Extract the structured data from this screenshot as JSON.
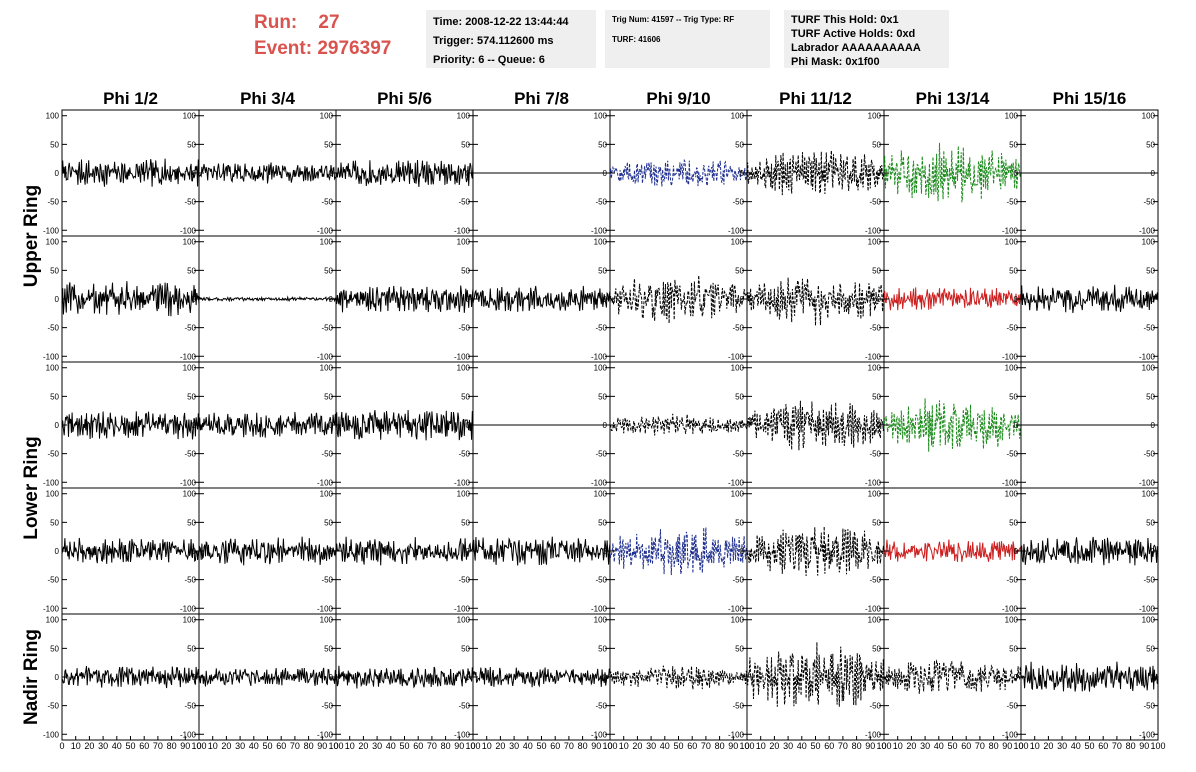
{
  "header": {
    "run_label": "Run:",
    "run_value": "27",
    "event_label": "Event:",
    "event_value": "2976397",
    "time": "Time: 2008-12-22 13:44:44",
    "trigger": "Trigger: 574.112600 ms",
    "priority": "Priority: 6 -- Queue: 6",
    "trig_num": "Trig Num: 41597 -- Trig Type: RF",
    "turf": "TURF: 41606",
    "turf_hold": "TURF This Hold: 0x1",
    "turf_active": "TURF Active Holds: 0xd",
    "labrador": "Labrador AAAAAAAAAA",
    "phi_mask": "Phi Mask: 0x1f00"
  },
  "chart_data": {
    "type": "line",
    "columns": [
      "Phi 1/2",
      "Phi 3/4",
      "Phi 5/6",
      "Phi 7/8",
      "Phi 9/10",
      "Phi 11/12",
      "Phi 13/14",
      "Phi 15/16"
    ],
    "ring_labels": [
      {
        "label": "Upper Ring",
        "rows": [
          0,
          1
        ]
      },
      {
        "label": "Lower Ring",
        "rows": [
          2,
          3
        ]
      },
      {
        "label": "Nadir Ring",
        "rows": [
          4
        ]
      }
    ],
    "xlim": [
      0,
      100
    ],
    "ylim": [
      -110,
      110
    ],
    "y_ticks": [
      "100",
      "50",
      "0",
      "-50",
      "-100"
    ],
    "x_tick_labels": [
      "0",
      "10",
      "20",
      "30",
      "40",
      "50",
      "60",
      "70",
      "80",
      "90",
      "100"
    ],
    "colors": {
      "black": "#000000",
      "blue": "#1f2f8f",
      "green": "#1a8a1a",
      "red": "#cc1f1f"
    },
    "traces": [
      [
        {
          "amp": 22,
          "color": "black",
          "dash": false
        },
        {
          "amp": 16,
          "color": "black",
          "dash": false
        },
        {
          "amp": 22,
          "color": "black",
          "dash": false
        },
        {
          "amp": 0,
          "color": "black",
          "dash": false
        },
        {
          "amp": 25,
          "color": "blue",
          "dash": true
        },
        {
          "amp": 40,
          "color": "black",
          "dash": true
        },
        {
          "amp": 48,
          "color": "green",
          "dash": true
        },
        {
          "amp": 0,
          "color": "black",
          "dash": false
        }
      ],
      [
        {
          "amp": 28,
          "color": "black",
          "dash": false
        },
        {
          "amp": 3,
          "color": "black",
          "dash": false
        },
        {
          "amp": 22,
          "color": "black",
          "dash": false
        },
        {
          "amp": 22,
          "color": "black",
          "dash": false
        },
        {
          "amp": 40,
          "color": "black",
          "dash": true
        },
        {
          "amp": 42,
          "color": "black",
          "dash": true
        },
        {
          "amp": 18,
          "color": "red",
          "dash": false
        },
        {
          "amp": 22,
          "color": "black",
          "dash": false
        }
      ],
      [
        {
          "amp": 22,
          "color": "black",
          "dash": false
        },
        {
          "amp": 20,
          "color": "black",
          "dash": false
        },
        {
          "amp": 24,
          "color": "black",
          "dash": false
        },
        {
          "amp": 0,
          "color": "black",
          "dash": false
        },
        {
          "amp": 18,
          "color": "black",
          "dash": true
        },
        {
          "amp": 42,
          "color": "black",
          "dash": true
        },
        {
          "amp": 45,
          "color": "green",
          "dash": true
        },
        {
          "amp": 0,
          "color": "black",
          "dash": false
        }
      ],
      [
        {
          "amp": 20,
          "color": "black",
          "dash": false
        },
        {
          "amp": 22,
          "color": "black",
          "dash": false
        },
        {
          "amp": 22,
          "color": "black",
          "dash": false
        },
        {
          "amp": 22,
          "color": "black",
          "dash": false
        },
        {
          "amp": 40,
          "color": "blue",
          "dash": true
        },
        {
          "amp": 44,
          "color": "black",
          "dash": true
        },
        {
          "amp": 18,
          "color": "red",
          "dash": false
        },
        {
          "amp": 22,
          "color": "black",
          "dash": false
        }
      ],
      [
        {
          "amp": 18,
          "color": "black",
          "dash": false
        },
        {
          "amp": 15,
          "color": "black",
          "dash": false
        },
        {
          "amp": 18,
          "color": "black",
          "dash": false
        },
        {
          "amp": 16,
          "color": "black",
          "dash": false
        },
        {
          "amp": 20,
          "color": "black",
          "dash": true
        },
        {
          "amp": 55,
          "color": "black",
          "dash": true
        },
        {
          "amp": 30,
          "color": "black",
          "dash": true
        },
        {
          "amp": 24,
          "color": "black",
          "dash": false
        }
      ]
    ]
  }
}
